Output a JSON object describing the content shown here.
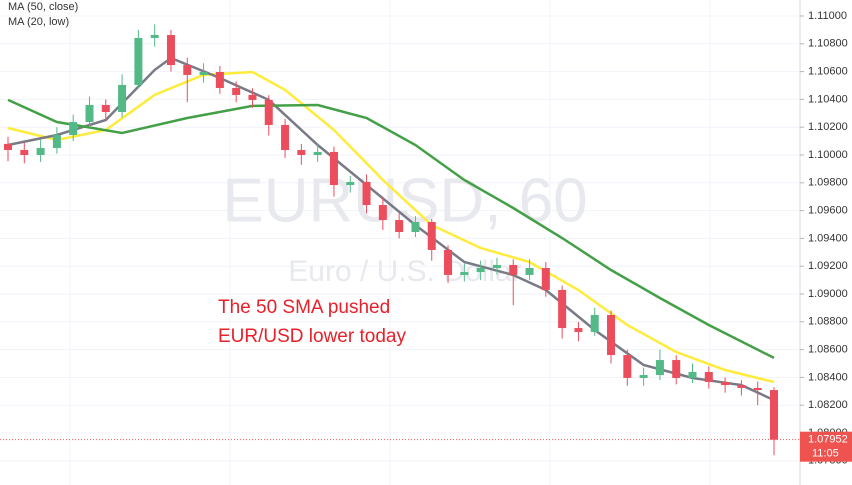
{
  "chart_data": {
    "type": "candlestick",
    "title": "EURUSD, 60",
    "subtitle": "Euro / U.S. Dollar",
    "annotation": [
      "The 50 SMA pushed",
      "EUR/USD lower today"
    ],
    "up_color": "#53b987",
    "down_color": "#eb4d5c",
    "open": [
      1.1008,
      1.10036,
      1.1,
      1.1005,
      1.10144,
      1.10237,
      1.1036,
      1.10309,
      1.10504,
      1.10842,
      1.10863,
      1.10647,
      1.10576,
      1.10597,
      1.10482,
      1.10432,
      1.10396,
      1.10216,
      1.10036,
      1.1,
      1.10022,
      1.09784,
      1.09806,
      1.0964,
      1.09532,
      1.09446,
      1.09518,
      1.09317,
      1.09137,
      1.09158,
      1.09187,
      1.09209,
      1.09137,
      1.09187,
      1.09029,
      1.08755,
      1.08727,
      1.08849,
      1.08561,
      1.08396,
      1.08417,
      1.08525,
      1.08396,
      1.08439,
      1.08367,
      1.08345,
      1.08324,
      1.08309
    ],
    "high": [
      1.1013,
      1.1009,
      1.1011,
      1.102,
      1.1029,
      1.1042,
      1.104,
      1.1058,
      1.109,
      1.1094,
      1.109,
      1.107,
      1.1066,
      1.1064,
      1.1053,
      1.1048,
      1.1043,
      1.1026,
      1.1008,
      1.1008,
      1.1006,
      1.0985,
      1.0986,
      1.097,
      1.0958,
      1.0956,
      1.0954,
      1.0935,
      1.0922,
      1.0924,
      1.0926,
      1.0925,
      1.0925,
      1.0923,
      1.0906,
      1.088,
      1.089,
      1.0888,
      1.086,
      1.0847,
      1.086,
      1.0856,
      1.085,
      1.0848,
      1.084,
      1.0838,
      1.0837,
      1.0833
    ],
    "low": [
      1.09956,
      1.0994,
      1.0995,
      1.1001,
      1.101,
      1.102,
      1.1025,
      1.1027,
      1.1048,
      1.1078,
      1.106,
      1.1038,
      1.1052,
      1.1044,
      1.1038,
      1.1034,
      1.1014,
      1.0998,
      1.0993,
      1.0995,
      1.097,
      1.0973,
      1.0958,
      1.0946,
      1.094,
      1.0941,
      1.0924,
      1.0908,
      1.0909,
      1.091,
      1.0914,
      1.0892,
      1.091,
      1.0898,
      1.0868,
      1.0866,
      1.087,
      1.085,
      1.0834,
      1.0834,
      1.0838,
      1.0835,
      1.0836,
      1.0832,
      1.0829,
      1.0827,
      1.082,
      1.0784
    ],
    "close": [
      1.10036,
      1.1,
      1.1005,
      1.10144,
      1.10237,
      1.1036,
      1.10309,
      1.10504,
      1.10842,
      1.10863,
      1.10647,
      1.10576,
      1.10597,
      1.10482,
      1.10432,
      1.10396,
      1.10216,
      1.10036,
      1.1,
      1.10022,
      1.09784,
      1.09806,
      1.0964,
      1.09532,
      1.09446,
      1.09518,
      1.09317,
      1.09137,
      1.09158,
      1.09187,
      1.09209,
      1.09137,
      1.09187,
      1.09029,
      1.08755,
      1.08727,
      1.08849,
      1.08561,
      1.08396,
      1.08417,
      1.08525,
      1.08396,
      1.08439,
      1.08367,
      1.08345,
      1.08324,
      1.08309,
      1.07952
    ],
    "xlim": [
      0,
      47
    ],
    "lines": [
      {
        "name": "MA (50, close)",
        "color": "#ffeb3b",
        "x": [
          0,
          3,
          6,
          9,
          12,
          15,
          17,
          20,
          23,
          26,
          29,
          32,
          35,
          38,
          41,
          44,
          47
        ],
        "values": [
          1.10194,
          1.10108,
          1.1018,
          1.10432,
          1.10576,
          1.10597,
          1.10468,
          1.1018,
          1.0982,
          1.09496,
          1.09331,
          1.0923,
          1.09029,
          1.08777,
          1.08583,
          1.08453,
          1.08367
        ]
      },
      {
        "name": "MA (20, low)",
        "color": "#787b86",
        "x": [
          0,
          3,
          6,
          9,
          10,
          13,
          16,
          19,
          22,
          25,
          28,
          31,
          33,
          36,
          39,
          42,
          45,
          47
        ],
        "values": [
          1.10072,
          1.10144,
          1.10252,
          1.10612,
          1.10698,
          1.10554,
          1.10396,
          1.10072,
          1.09784,
          1.09496,
          1.0923,
          1.09137,
          1.09029,
          1.08741,
          1.08489,
          1.08396,
          1.08345,
          1.08237
        ]
      },
      {
        "color": "#43a047",
        "x": [
          0,
          3,
          7,
          11,
          15,
          19,
          22,
          25,
          28,
          31,
          34,
          37,
          40,
          43,
          47
        ],
        "values": [
          1.10396,
          1.10237,
          1.10158,
          1.10266,
          1.10353,
          1.1036,
          1.10266,
          1.10072,
          1.0982,
          1.09619,
          1.09403,
          1.09173,
          1.08971,
          1.08777,
          1.0854
        ]
      }
    ],
    "ylim": [
      1.07626,
      1.11115
    ],
    "yticks": [
      {
        "value": 1.11,
        "label": "1.11000"
      },
      {
        "value": 1.108,
        "label": "1.10800"
      },
      {
        "value": 1.106,
        "label": "1.10600"
      },
      {
        "value": 1.104,
        "label": "1.10400"
      },
      {
        "value": 1.102,
        "label": "1.10200"
      },
      {
        "value": 1.1,
        "label": "1.10000"
      },
      {
        "value": 1.098,
        "label": "1.09800"
      },
      {
        "value": 1.096,
        "label": "1.09600"
      },
      {
        "value": 1.094,
        "label": "1.09400"
      },
      {
        "value": 1.092,
        "label": "1.09200"
      },
      {
        "value": 1.09,
        "label": "1.09000"
      },
      {
        "value": 1.088,
        "label": "1.08800"
      },
      {
        "value": 1.086,
        "label": "1.08600"
      },
      {
        "value": 1.084,
        "label": "1.08400"
      },
      {
        "value": 1.082,
        "label": "1.08200"
      },
      {
        "value": 1.08,
        "label": "1.08000"
      },
      {
        "value": 1.078,
        "label": "1.07800"
      }
    ],
    "grid": true,
    "last_price": {
      "value": 1.07952,
      "countdown": "11:05",
      "color": "#ef5350"
    }
  }
}
